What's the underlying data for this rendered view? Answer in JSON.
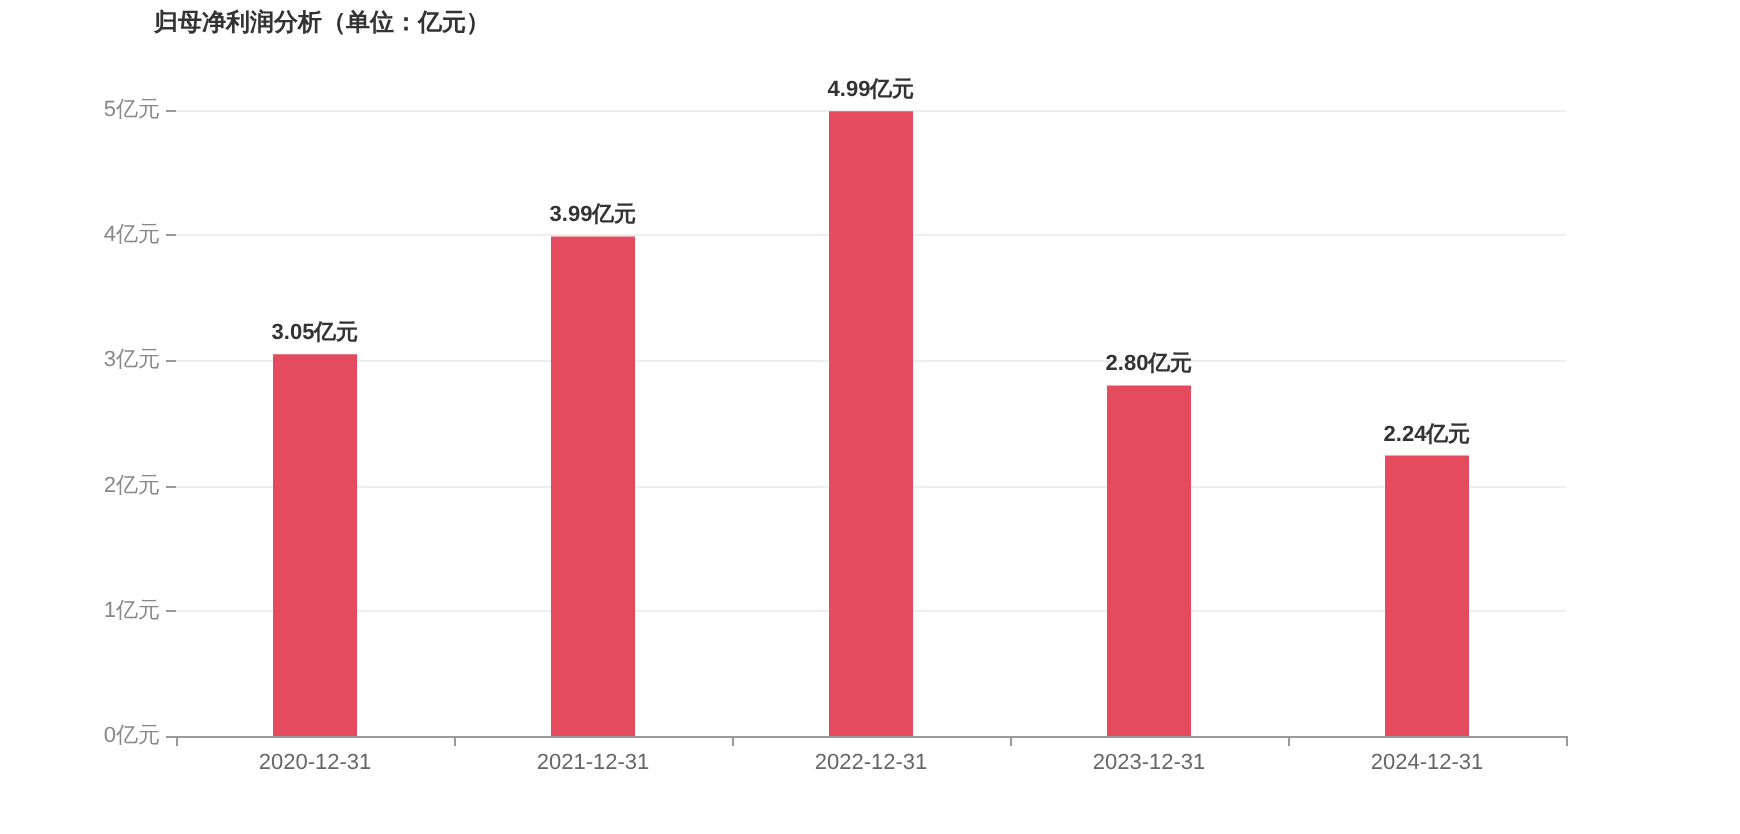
{
  "chart_data": {
    "type": "bar",
    "title": "归母净利润分析（单位：亿元）",
    "categories": [
      "2020-12-31",
      "2021-12-31",
      "2022-12-31",
      "2023-12-31",
      "2024-12-31"
    ],
    "values": [
      3.05,
      3.99,
      4.99,
      2.8,
      2.24
    ],
    "value_labels": [
      "3.05亿元",
      "3.99亿元",
      "4.99亿元",
      "2.80亿元",
      "2.24亿元"
    ],
    "color": "#e54b5e",
    "ylim": [
      0,
      5
    ],
    "yticks": [
      {
        "value": 0,
        "label": "0亿元"
      },
      {
        "value": 1,
        "label": "1亿元"
      },
      {
        "value": 2,
        "label": "2亿元"
      },
      {
        "value": 3,
        "label": "3亿元"
      },
      {
        "value": 4,
        "label": "4亿元"
      },
      {
        "value": 5,
        "label": "5亿元"
      }
    ],
    "grid": "y"
  }
}
